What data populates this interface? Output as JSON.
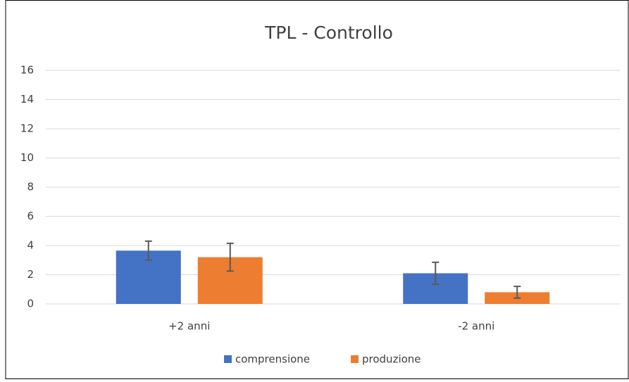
{
  "chart_data": {
    "type": "bar",
    "title": "TPL - Controllo",
    "categories": [
      "+2 anni",
      "-2 anni"
    ],
    "series": [
      {
        "name": "comprensione",
        "color": "#4472c4",
        "values": [
          3.65,
          2.1
        ],
        "errors": [
          0.65,
          0.75
        ]
      },
      {
        "name": "produzione",
        "color": "#ed7d31",
        "values": [
          3.2,
          0.8
        ],
        "errors": [
          0.95,
          0.4
        ]
      }
    ],
    "ylim": [
      0,
      16
    ],
    "yticks": [
      0,
      2,
      4,
      6,
      8,
      10,
      12,
      14,
      16
    ],
    "grid": true,
    "legend": "bottom"
  }
}
